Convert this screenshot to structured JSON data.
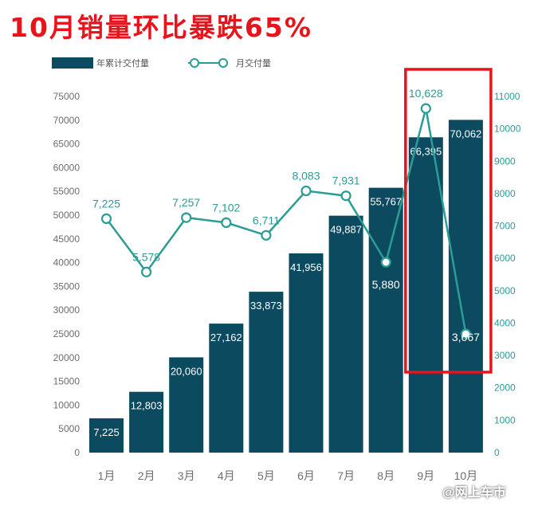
{
  "headline": "10月销量环比暴跌65%",
  "watermark": "@网上车市",
  "colors": {
    "bar": "#0b4a5f",
    "line": "#2a9d95",
    "highlight": "#e8141b"
  },
  "chart_data": {
    "type": "bar",
    "categories": [
      "1月",
      "2月",
      "3月",
      "4月",
      "5月",
      "6月",
      "7月",
      "8月",
      "9月",
      "10月"
    ],
    "series": [
      {
        "name": "年累计交付量",
        "type": "bar",
        "axis": "left",
        "values": [
          7225,
          12803,
          20060,
          27162,
          33873,
          41956,
          49887,
          55767,
          66395,
          70062
        ],
        "labels": [
          "7,225",
          "12,803",
          "20,060",
          "27,162",
          "33,873",
          "41,956",
          "49,887",
          "55,767",
          "66,395",
          "70,062"
        ]
      },
      {
        "name": "月交付量",
        "type": "line",
        "axis": "right",
        "values": [
          7225,
          5578,
          7257,
          7102,
          6711,
          8083,
          7931,
          5880,
          10628,
          3667
        ],
        "labels": [
          "7,225",
          "5,578",
          "7,257",
          "7,102",
          "6,711",
          "8,083",
          "7,931",
          "5,880",
          "10,628",
          "3,667"
        ]
      }
    ],
    "left_axis": {
      "ylim": [
        0,
        75000
      ],
      "ticks": [
        0,
        5000,
        10000,
        15000,
        20000,
        25000,
        30000,
        35000,
        40000,
        45000,
        50000,
        55000,
        60000,
        65000,
        70000,
        75000
      ]
    },
    "right_axis": {
      "ylim": [
        0,
        11000
      ],
      "ticks": [
        0,
        1000,
        2000,
        3000,
        4000,
        5000,
        6000,
        7000,
        8000,
        9000,
        10000,
        11000
      ]
    },
    "highlight": {
      "categories": [
        "9月",
        "10月"
      ]
    },
    "legend": "top-left",
    "grid": false
  }
}
